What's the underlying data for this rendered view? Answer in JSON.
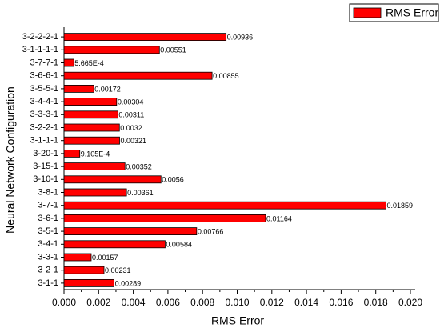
{
  "chart_data": {
    "type": "bar",
    "orientation": "horizontal",
    "x_label": "RMS Error",
    "y_label": "Neural Network Configuration",
    "categories": [
      "3-2-2-2-1",
      "3-1-1-1-1",
      "3-7-7-1",
      "3-6-6-1",
      "3-5-5-1",
      "3-4-4-1",
      "3-3-3-1",
      "3-2-2-1",
      "3-1-1-1",
      "3-20-1",
      "3-15-1",
      "3-10-1",
      "3-8-1",
      "3-7-1",
      "3-6-1",
      "3-5-1",
      "3-4-1",
      "3-3-1",
      "3-2-1",
      "3-1-1"
    ],
    "series": [
      {
        "name": "RMS Error",
        "color": "#ff0000",
        "values": [
          0.00936,
          0.00551,
          0.0005665,
          0.00855,
          0.00172,
          0.00304,
          0.00311,
          0.0032,
          0.00321,
          0.0009105,
          0.00352,
          0.0056,
          0.00361,
          0.01859,
          0.01164,
          0.00766,
          0.00584,
          0.00157,
          0.00231,
          0.00289
        ],
        "value_labels": [
          "0.00936",
          "0.00551",
          "5.665E-4",
          "0.00855",
          "0.00172",
          "0.00304",
          "0.00311",
          "0.0032",
          "0.00321",
          "9.105E-4",
          "0.00352",
          "0.0056",
          "0.00361",
          "0.01859",
          "0.01164",
          "0.00766",
          "0.00584",
          "0.00157",
          "0.00231",
          "0.00289"
        ]
      }
    ],
    "xlim": [
      0,
      0.02
    ],
    "xticks": [
      {
        "value": 0,
        "label": "0.000"
      },
      {
        "value": 0.002,
        "label": "0.002"
      },
      {
        "value": 0.004,
        "label": "0.004"
      },
      {
        "value": 0.006,
        "label": "0.006"
      },
      {
        "value": 0.008,
        "label": "0.008"
      },
      {
        "value": 0.01,
        "label": "0.010"
      },
      {
        "value": 0.012,
        "label": "0.012"
      },
      {
        "value": 0.014,
        "label": "0.014"
      },
      {
        "value": 0.016,
        "label": "0.016"
      },
      {
        "value": 0.018,
        "label": "0.018"
      },
      {
        "value": 0.02,
        "label": "0.020"
      }
    ],
    "legend": "top-right"
  }
}
